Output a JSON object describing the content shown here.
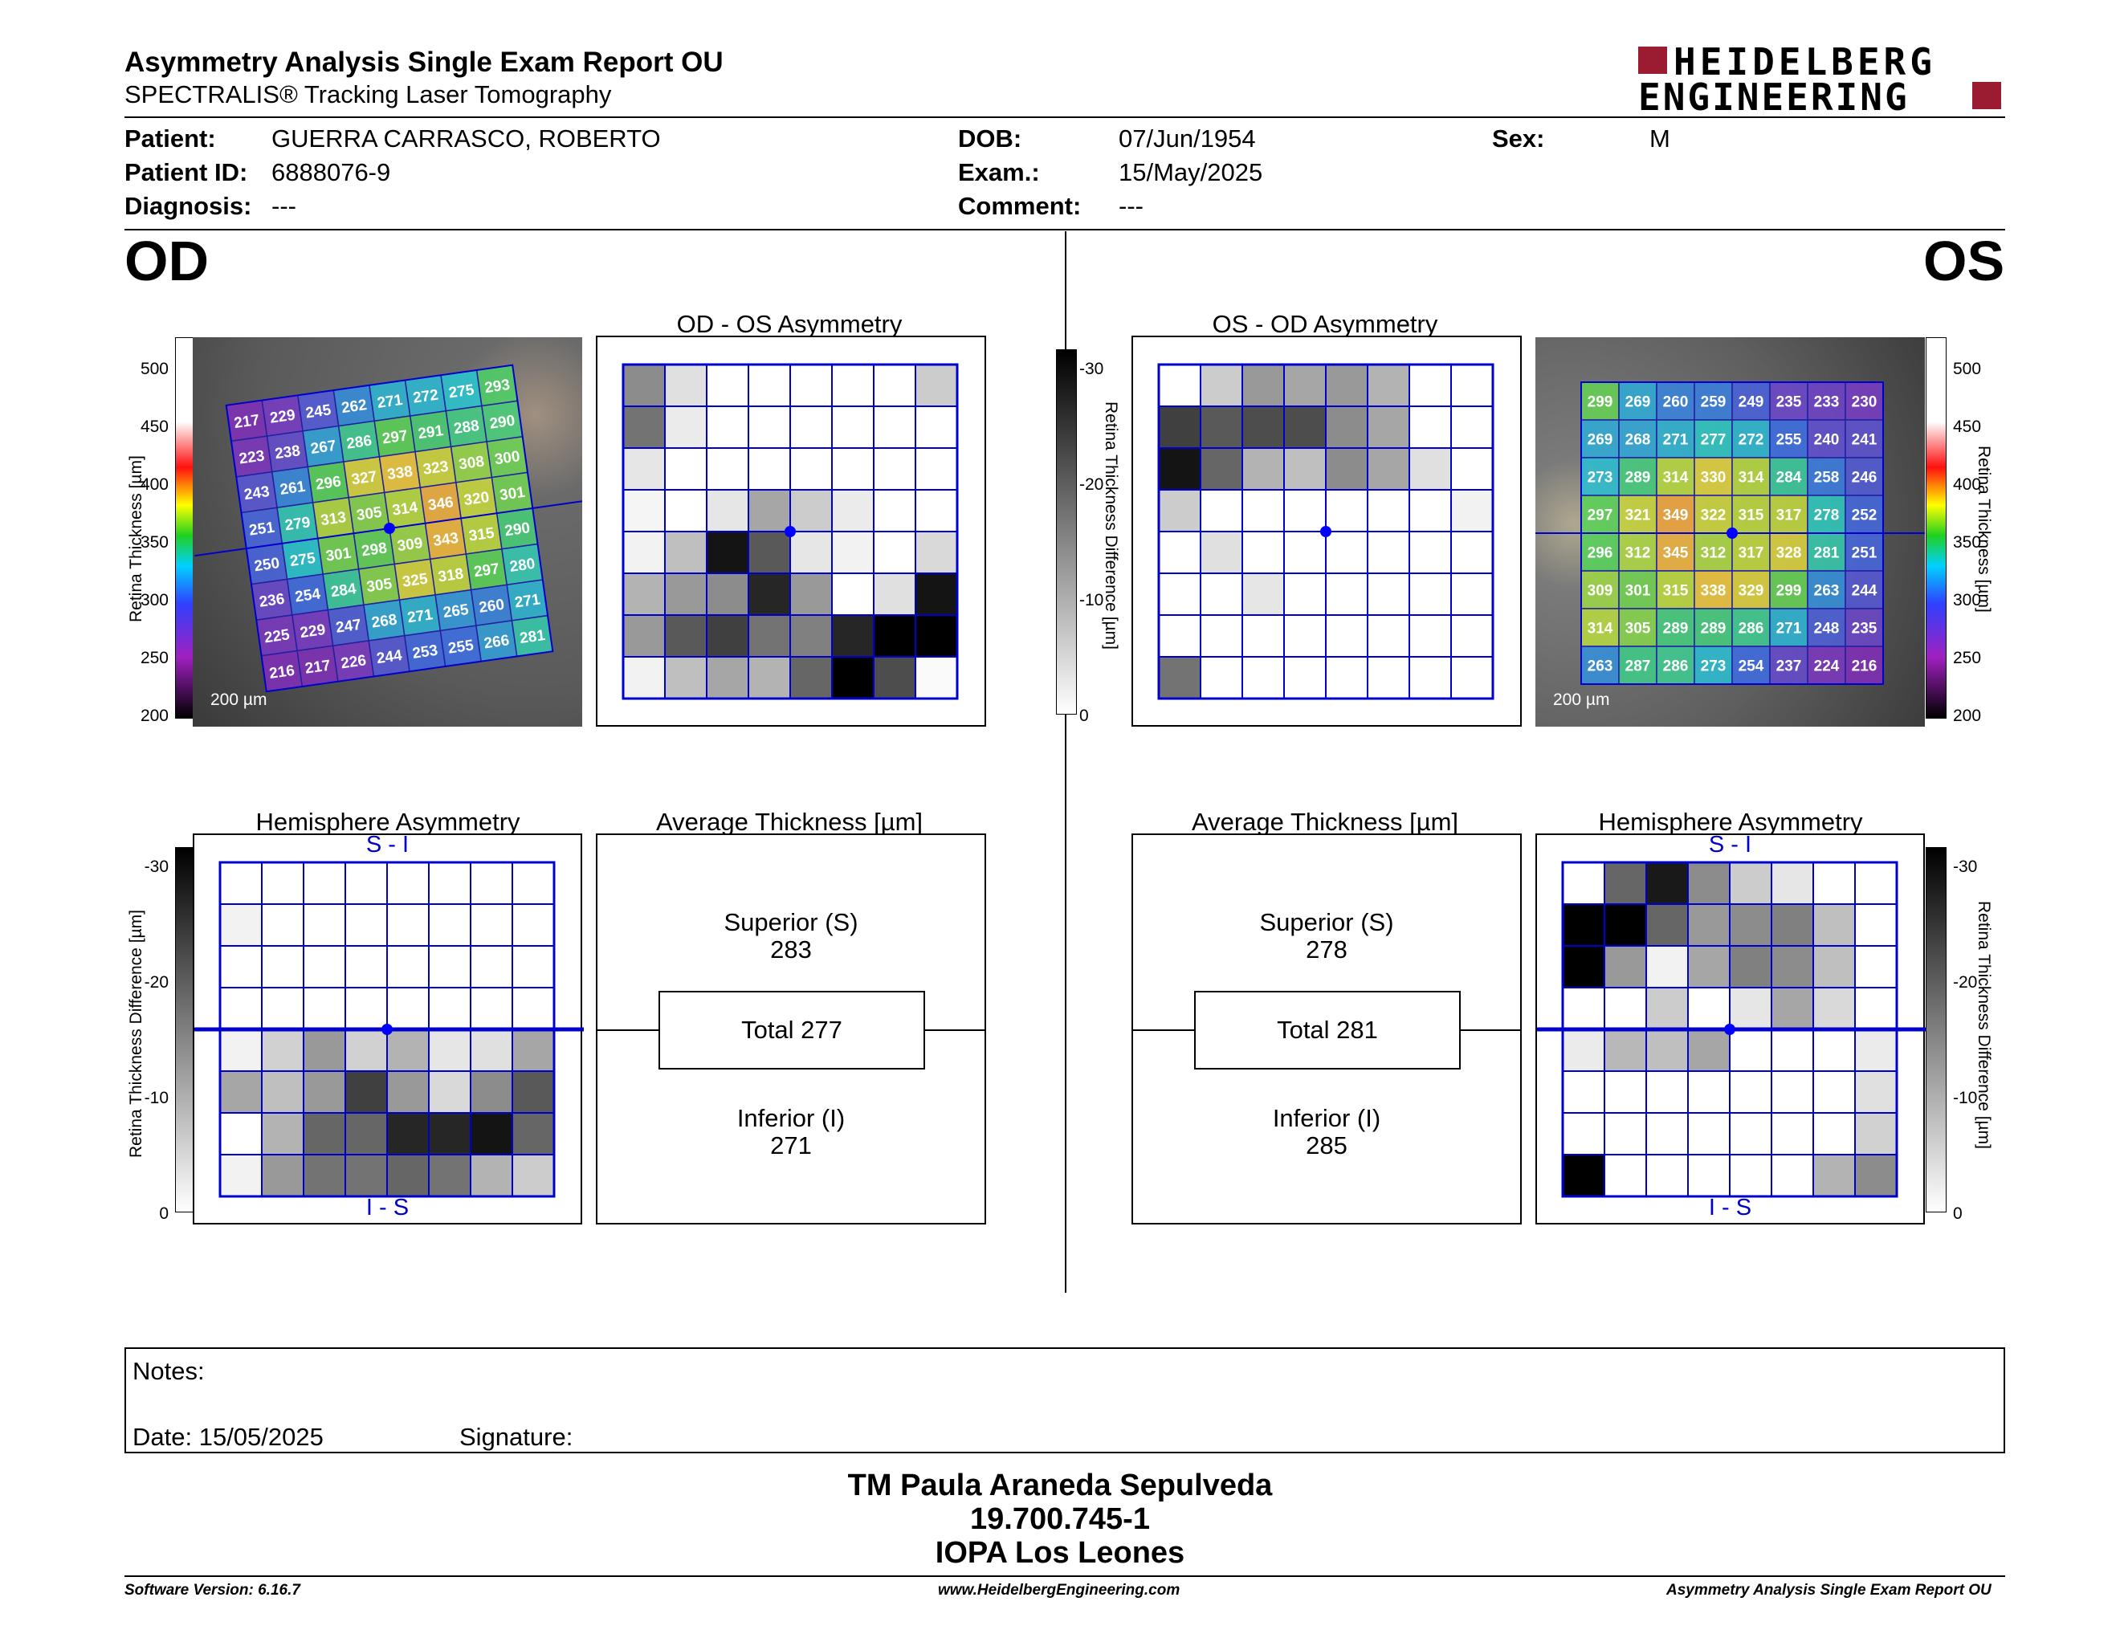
{
  "header": {
    "title": "Asymmetry Analysis Single Exam Report OU",
    "subtitle": "SPECTRALIS® Tracking Laser Tomography",
    "logo_line1": "HEIDELBERG",
    "logo_line2": "ENGINEERING",
    "logo_color": "#9b1b30"
  },
  "patient": {
    "patient_label": "Patient:",
    "patient_value": "GUERRA CARRASCO, ROBERTO",
    "id_label": "Patient ID:",
    "id_value": "6888076-9",
    "diagnosis_label": "Diagnosis:",
    "diagnosis_value": "---",
    "dob_label": "DOB:",
    "dob_value": "07/Jun/1954",
    "exam_label": "Exam.:",
    "exam_value": "15/May/2025",
    "comment_label": "Comment:",
    "comment_value": "---",
    "sex_label": "Sex:",
    "sex_value": "M"
  },
  "od": {
    "eye_label": "OD",
    "asym_title": "OD - OS Asymmetry",
    "hemi_title": "Hemisphere Asymmetry",
    "avg_title": "Average Thickness [µm]",
    "superior_label": "Superior (S)",
    "superior_value": "283",
    "total_label": "Total 277",
    "inferior_label": "Inferior (I)",
    "inferior_value": "271",
    "scale_label": "200 µm",
    "hemi_top": "S - I",
    "hemi_bottom": "I - S",
    "thickness_grid": [
      [
        "217",
        "229",
        "245",
        "262",
        "271",
        "272",
        "275",
        "293"
      ],
      [
        "223",
        "238",
        "267",
        "286",
        "297",
        "291",
        "288",
        "290"
      ],
      [
        "243",
        "261",
        "296",
        "327",
        "338",
        "323",
        "308",
        "300"
      ],
      [
        "251",
        "279",
        "313",
        "305",
        "314",
        "346",
        "320",
        "301"
      ],
      [
        "250",
        "275",
        "301",
        "298",
        "309",
        "343",
        "315",
        "290"
      ],
      [
        "236",
        "254",
        "284",
        "305",
        "325",
        "318",
        "297",
        "280"
      ],
      [
        "225",
        "229",
        "247",
        "268",
        "271",
        "265",
        "260",
        "271"
      ],
      [
        "216",
        "217",
        "226",
        "244",
        "253",
        "255",
        "266",
        "281"
      ]
    ],
    "asym_grid": [
      [
        0.45,
        0.12,
        0,
        0,
        0,
        0,
        0,
        0.2
      ],
      [
        0.55,
        0.08,
        0,
        0,
        0,
        0,
        0,
        0
      ],
      [
        0.1,
        0,
        0,
        0,
        0,
        0,
        0,
        0
      ],
      [
        0.04,
        0,
        0.1,
        0.35,
        0.2,
        0.08,
        0,
        0
      ],
      [
        0.05,
        0.25,
        0.92,
        0.65,
        0.1,
        0.05,
        0,
        0.15
      ],
      [
        0.3,
        0.4,
        0.45,
        0.85,
        0.4,
        0,
        0.12,
        0.92
      ],
      [
        0.4,
        0.65,
        0.75,
        0.55,
        0.5,
        0.85,
        1,
        1
      ],
      [
        0.05,
        0.25,
        0.35,
        0.3,
        0.6,
        1,
        0.7,
        0.02
      ]
    ],
    "hemi_grid": [
      [
        0,
        0,
        0,
        0,
        0,
        0,
        0,
        0
      ],
      [
        0.05,
        0,
        0,
        0,
        0,
        0,
        0,
        0
      ],
      [
        0,
        0,
        0,
        0,
        0,
        0,
        0,
        0
      ],
      [
        0,
        0,
        0,
        0,
        0,
        0,
        0,
        0
      ],
      [
        0.05,
        0.18,
        0.4,
        0.18,
        0.3,
        0.1,
        0.12,
        0.35
      ],
      [
        0.35,
        0.25,
        0.4,
        0.75,
        0.4,
        0.15,
        0.45,
        0.65
      ],
      [
        0,
        0.3,
        0.6,
        0.6,
        0.85,
        0.85,
        0.92,
        0.6
      ],
      [
        0.05,
        0.4,
        0.55,
        0.55,
        0.6,
        0.55,
        0.3,
        0.2
      ]
    ]
  },
  "os": {
    "eye_label": "OS",
    "asym_title": "OS - OD Asymmetry",
    "hemi_title": "Hemisphere Asymmetry",
    "avg_title": "Average Thickness [µm]",
    "superior_label": "Superior (S)",
    "superior_value": "278",
    "total_label": "Total 281",
    "inferior_label": "Inferior (I)",
    "inferior_value": "285",
    "scale_label": "200 µm",
    "hemi_top": "S - I",
    "hemi_bottom": "I - S",
    "thickness_grid": [
      [
        "299",
        "269",
        "260",
        "259",
        "249",
        "235",
        "233",
        "230"
      ],
      [
        "269",
        "268",
        "271",
        "277",
        "272",
        "255",
        "240",
        "241"
      ],
      [
        "273",
        "289",
        "314",
        "330",
        "314",
        "284",
        "258",
        "246"
      ],
      [
        "297",
        "321",
        "349",
        "322",
        "315",
        "317",
        "278",
        "252"
      ],
      [
        "296",
        "312",
        "345",
        "312",
        "317",
        "328",
        "281",
        "251"
      ],
      [
        "309",
        "301",
        "315",
        "338",
        "329",
        "299",
        "263",
        "244"
      ],
      [
        "314",
        "305",
        "289",
        "289",
        "286",
        "271",
        "248",
        "235"
      ],
      [
        "263",
        "287",
        "286",
        "273",
        "254",
        "237",
        "224",
        "216"
      ]
    ],
    "asym_grid": [
      [
        0,
        0.2,
        0.4,
        0.35,
        0.4,
        0.3,
        0,
        0
      ],
      [
        0.75,
        0.65,
        0.7,
        0.7,
        0.45,
        0.35,
        0,
        0
      ],
      [
        0.92,
        0.6,
        0.3,
        0.25,
        0.45,
        0.35,
        0.12,
        0
      ],
      [
        0.2,
        0,
        0,
        0,
        0,
        0,
        0,
        0.05
      ],
      [
        0,
        0.12,
        0,
        0,
        0,
        0,
        0,
        0
      ],
      [
        0,
        0,
        0.1,
        0,
        0,
        0,
        0,
        0
      ],
      [
        0,
        0,
        0,
        0,
        0,
        0,
        0,
        0
      ],
      [
        0.55,
        0,
        0,
        0,
        0,
        0,
        0,
        0
      ]
    ],
    "hemi_grid": [
      [
        0,
        0.6,
        0.9,
        0.45,
        0.2,
        0.1,
        0,
        0
      ],
      [
        1,
        1,
        0.6,
        0.4,
        0.45,
        0.5,
        0.25,
        0
      ],
      [
        1,
        0.4,
        0.05,
        0.35,
        0.5,
        0.45,
        0.25,
        0
      ],
      [
        0,
        0,
        0.2,
        0,
        0.1,
        0.35,
        0.15,
        0
      ],
      [
        0.08,
        0.28,
        0.25,
        0.35,
        0,
        0,
        0,
        0.08
      ],
      [
        0,
        0,
        0,
        0,
        0,
        0,
        0,
        0.12
      ],
      [
        0,
        0,
        0,
        0,
        0,
        0,
        0,
        0.18
      ],
      [
        1,
        0,
        0,
        0,
        0,
        0,
        0.3,
        0.45
      ]
    ]
  },
  "scales": {
    "thickness_ticks": [
      "500",
      "450",
      "400",
      "350",
      "300",
      "250",
      "200"
    ],
    "thickness_label": "Retina  Thickness [µm]",
    "diff_ticks": [
      "-30",
      "-20",
      "-10",
      "0"
    ],
    "diff_label": "Retina Thickness Difference [µm]"
  },
  "notes": {
    "notes_label": "Notes:",
    "date_label": "Date: 15/05/2025",
    "signature_label": "Signature:"
  },
  "signature": {
    "name": "TM Paula Araneda Sepulveda",
    "rut": "19.700.745-1",
    "institution": "IOPA Los Leones"
  },
  "footer": {
    "software": "Software Version: 6.16.7",
    "website": "www.HeidelbergEngineering.com",
    "report": "Asymmetry Analysis Single Exam Report OU"
  }
}
